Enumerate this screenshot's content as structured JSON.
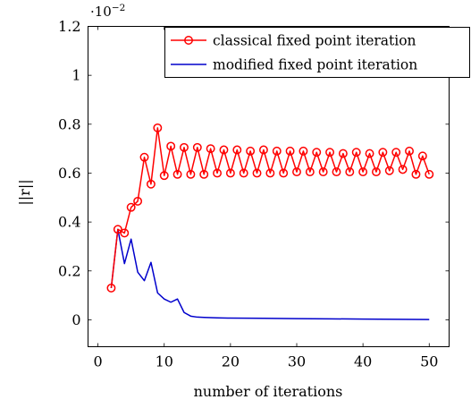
{
  "chart_data": {
    "type": "line",
    "title": "",
    "xlabel": "number of iterations",
    "ylabel": "||r||",
    "xlim": [
      -1.5,
      53
    ],
    "ylim": [
      -0.11,
      1.2
    ],
    "x_ticks": [
      "0",
      "10",
      "20",
      "30",
      "40",
      "50"
    ],
    "y_ticks": [
      "0",
      "0.2",
      "0.4",
      "0.6",
      "0.8",
      "1",
      "1.2"
    ],
    "y_scale_label": "·10",
    "y_scale_exponent": "−2",
    "grid": false,
    "legend_position": "top-right",
    "series": [
      {
        "name": "classical fixed point iteration",
        "color": "#ff0000",
        "marker": "circle",
        "x": [
          2,
          3,
          4,
          5,
          6,
          7,
          8,
          9,
          10,
          11,
          12,
          13,
          14,
          15,
          16,
          17,
          18,
          19,
          20,
          21,
          22,
          23,
          24,
          25,
          26,
          27,
          28,
          29,
          30,
          31,
          32,
          33,
          34,
          35,
          36,
          37,
          38,
          39,
          40,
          41,
          42,
          43,
          44,
          45,
          46,
          47,
          48,
          49,
          50
        ],
        "values": [
          0.13,
          0.37,
          0.355,
          0.46,
          0.485,
          0.665,
          0.555,
          0.785,
          0.59,
          0.71,
          0.595,
          0.705,
          0.595,
          0.705,
          0.595,
          0.7,
          0.6,
          0.695,
          0.6,
          0.695,
          0.6,
          0.69,
          0.6,
          0.695,
          0.6,
          0.69,
          0.6,
          0.69,
          0.605,
          0.69,
          0.605,
          0.685,
          0.605,
          0.685,
          0.605,
          0.68,
          0.605,
          0.685,
          0.605,
          0.68,
          0.605,
          0.685,
          0.61,
          0.685,
          0.615,
          0.69,
          0.595,
          0.67,
          0.595
        ]
      },
      {
        "name": "modified fixed point iteration",
        "color": "#0000cc",
        "marker": "none",
        "x": [
          2,
          3,
          4,
          5,
          6,
          7,
          8,
          9,
          10,
          11,
          12,
          13,
          14,
          15,
          16,
          17,
          18,
          20,
          25,
          30,
          35,
          40,
          45,
          50
        ],
        "values": [
          0.13,
          0.37,
          0.23,
          0.33,
          0.195,
          0.16,
          0.235,
          0.11,
          0.085,
          0.072,
          0.085,
          0.03,
          0.015,
          0.011,
          0.01,
          0.009,
          0.008,
          0.007,
          0.006,
          0.005,
          0.004,
          0.003,
          0.002,
          0.001
        ]
      }
    ]
  }
}
